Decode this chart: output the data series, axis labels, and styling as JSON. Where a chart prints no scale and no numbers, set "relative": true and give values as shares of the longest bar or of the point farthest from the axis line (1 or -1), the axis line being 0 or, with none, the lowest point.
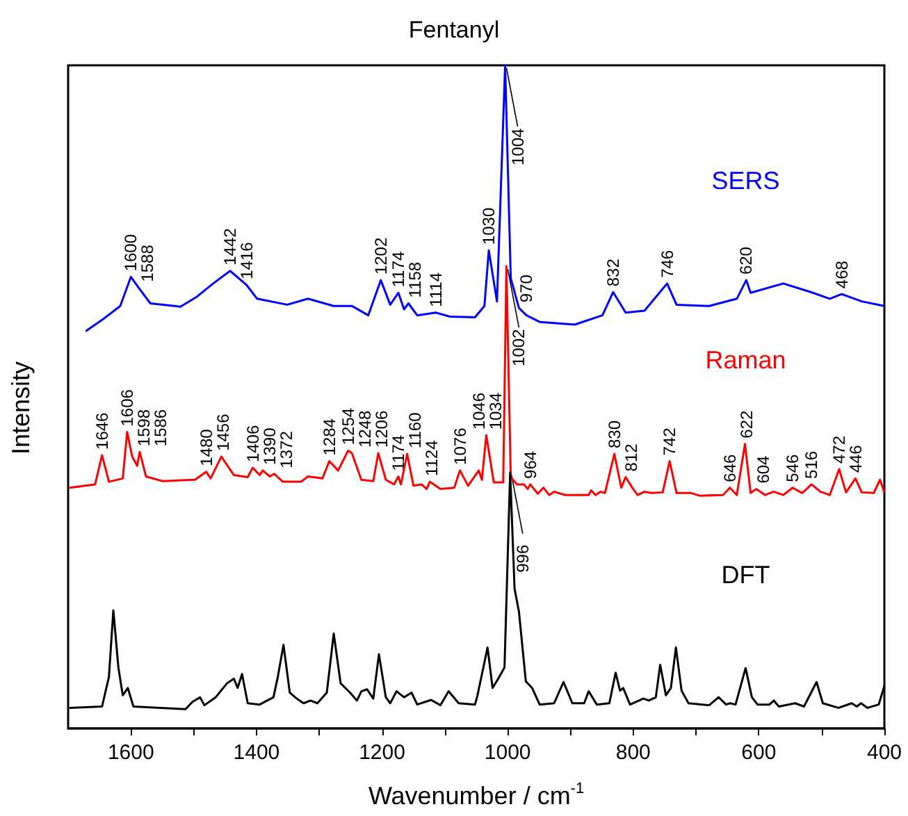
{
  "chart_data": {
    "type": "line",
    "title": "Fentanyl",
    "xlabel": "Wavenumber / cm$^{-1}$",
    "ylabel": "Intensity",
    "relative": true,
    "marker": "none",
    "xlim": [
      1700,
      400
    ],
    "xticks": [
      1600,
      {
        "value": 1500,
        "label": null
      },
      1400,
      {
        "value": 1300,
        "label": null
      },
      1200,
      {
        "value": 1100,
        "label": null
      },
      1000,
      {
        "value": 900,
        "label": null
      },
      800,
      {
        "value": 700,
        "label": null
      },
      600,
      {
        "value": 500,
        "label": null
      },
      400
    ],
    "series": [
      {
        "name": "SERS",
        "color": "#0000ff",
        "x": [
          1672,
          1646,
          1617,
          1600,
          1588,
          1569,
          1521,
          1495,
          1469,
          1442,
          1416,
          1399,
          1351,
          1318,
          1277,
          1248,
          1222,
          1202,
          1187,
          1174,
          1165,
          1158,
          1144,
          1114,
          1092,
          1052,
          1037,
          1030,
          1017,
          1004,
          995,
          982,
          970,
          949,
          893,
          849,
          832,
          812,
          782,
          746,
          731,
          679,
          635,
          620,
          613,
          561,
          517,
          487,
          468,
          436,
          400
        ],
        "values": [
          0.599,
          0.616,
          0.637,
          0.681,
          0.665,
          0.641,
          0.636,
          0.651,
          0.671,
          0.69,
          0.669,
          0.648,
          0.639,
          0.648,
          0.637,
          0.637,
          0.623,
          0.676,
          0.639,
          0.657,
          0.632,
          0.641,
          0.623,
          0.627,
          0.621,
          0.62,
          0.637,
          0.721,
          0.644,
          1,
          0.679,
          0.634,
          0.623,
          0.613,
          0.609,
          0.623,
          0.658,
          0.627,
          0.63,
          0.671,
          0.639,
          0.637,
          0.648,
          0.676,
          0.657,
          0.671,
          0.658,
          0.648,
          0.655,
          0.644,
          0.637
        ]
      },
      {
        "name": "Raman",
        "color": "#ff0000",
        "x": [
          1698,
          1657,
          1646,
          1635,
          1613,
          1606,
          1598,
          1590,
          1586,
          1576,
          1550,
          1498,
          1480,
          1473,
          1456,
          1436,
          1414,
          1406,
          1395,
          1390,
          1379,
          1372,
          1358,
          1329,
          1318,
          1295,
          1284,
          1270,
          1254,
          1248,
          1233,
          1214,
          1206,
          1194,
          1181,
          1174,
          1170,
          1160,
          1150,
          1137,
          1129,
          1124,
          1107,
          1085,
          1076,
          1063,
          1046,
          1041,
          1034,
          1022,
          1007,
          1002,
          995,
          985,
          974,
          968,
          964,
          952,
          943,
          934,
          926,
          908,
          871,
          867,
          860,
          852,
          845,
          830,
          819,
          812,
          800,
          793,
          782,
          771,
          753,
          742,
          731,
          708,
          694,
          657,
          646,
          635,
          622,
          613,
          604,
          590,
          576,
          561,
          546,
          531,
          516,
          502,
          487,
          472,
          461,
          446,
          436,
          417,
          407,
          400
        ],
        "values": [
          0.363,
          0.368,
          0.412,
          0.372,
          0.377,
          0.447,
          0.41,
          0.396,
          0.417,
          0.38,
          0.373,
          0.375,
          0.387,
          0.377,
          0.41,
          0.382,
          0.379,
          0.393,
          0.382,
          0.389,
          0.38,
          0.384,
          0.372,
          0.372,
          0.38,
          0.377,
          0.403,
          0.389,
          0.419,
          0.415,
          0.375,
          0.373,
          0.415,
          0.375,
          0.368,
          0.38,
          0.368,
          0.414,
          0.366,
          0.368,
          0.361,
          0.372,
          0.361,
          0.363,
          0.389,
          0.366,
          0.389,
          0.375,
          0.442,
          0.371,
          0.371,
          0.697,
          0.379,
          0.368,
          0.368,
          0.361,
          0.368,
          0.354,
          0.363,
          0.352,
          0.357,
          0.352,
          0.352,
          0.359,
          0.352,
          0.357,
          0.355,
          0.414,
          0.363,
          0.379,
          0.361,
          0.352,
          0.357,
          0.355,
          0.356,
          0.403,
          0.355,
          0.355,
          0.351,
          0.352,
          0.363,
          0.352,
          0.429,
          0.355,
          0.361,
          0.352,
          0.357,
          0.352,
          0.363,
          0.355,
          0.368,
          0.357,
          0.352,
          0.391,
          0.356,
          0.377,
          0.356,
          0.355,
          0.375,
          0.356
        ]
      },
      {
        "name": "DFT",
        "color": "#000000",
        "x": [
          1698,
          1646,
          1635,
          1628,
          1620,
          1613,
          1605,
          1596,
          1513,
          1502,
          1490,
          1483,
          1465,
          1447,
          1436,
          1430,
          1423,
          1414,
          1395,
          1373,
          1366,
          1357,
          1347,
          1336,
          1325,
          1314,
          1303,
          1288,
          1277,
          1266,
          1251,
          1240,
          1233,
          1224,
          1214,
          1205,
          1194,
          1187,
          1177,
          1165,
          1153,
          1144,
          1122,
          1107,
          1094,
          1078,
          1052,
          1048,
          1032,
          1024,
          1015,
          1005,
          996,
          989,
          982,
          971,
          961,
          949,
          926,
          911,
          897,
          878,
          871,
          858,
          838,
          828,
          821,
          816,
          805,
          784,
          775,
          764,
          757,
          748,
          740,
          732,
          723,
          712,
          679,
          664,
          652,
          646,
          637,
          621,
          611,
          602,
          583,
          576,
          568,
          542,
          528,
          508,
          498,
          473,
          452,
          444,
          437,
          427,
          409,
          400
        ],
        "values": [
          0.031,
          0.033,
          0.078,
          0.178,
          0.092,
          0.05,
          0.061,
          0.033,
          0.029,
          0.04,
          0.047,
          0.035,
          0.047,
          0.068,
          0.075,
          0.061,
          0.082,
          0.038,
          0.036,
          0.047,
          0.078,
          0.126,
          0.054,
          0.045,
          0.038,
          0.042,
          0.038,
          0.054,
          0.143,
          0.068,
          0.054,
          0.042,
          0.056,
          0.059,
          0.045,
          0.112,
          0.047,
          0.038,
          0.056,
          0.047,
          0.054,
          0.036,
          0.043,
          0.035,
          0.056,
          0.038,
          0.036,
          0.05,
          0.122,
          0.061,
          0.075,
          0.092,
          0.386,
          0.211,
          0.176,
          0.071,
          0.061,
          0.036,
          0.038,
          0.07,
          0.038,
          0.038,
          0.056,
          0.036,
          0.038,
          0.084,
          0.057,
          0.061,
          0.036,
          0.045,
          0.042,
          0.047,
          0.096,
          0.05,
          0.061,
          0.122,
          0.057,
          0.038,
          0.035,
          0.047,
          0.036,
          0.038,
          0.036,
          0.091,
          0.047,
          0.036,
          0.036,
          0.042,
          0.033,
          0.038,
          0.033,
          0.07,
          0.038,
          0.031,
          0.038,
          0.033,
          0.038,
          0.031,
          0.036,
          0.064
        ]
      }
    ],
    "annotations": [
      {
        "text": "1600",
        "x": 1600,
        "y": 0.681
      },
      {
        "text": "1588",
        "x": 1588,
        "y": 0.665
      },
      {
        "text": "1442",
        "x": 1442,
        "y": 0.69
      },
      {
        "text": "1416",
        "x": 1416,
        "y": 0.669
      },
      {
        "text": "1202",
        "x": 1202,
        "y": 0.676
      },
      {
        "text": "1174",
        "x": 1174,
        "y": 0.657
      },
      {
        "text": "1158",
        "x": 1158,
        "y": 0.641
      },
      {
        "text": "1114",
        "x": 1114,
        "y": 0.627
      },
      {
        "text": "1030",
        "x": 1030,
        "y": 0.721
      },
      {
        "text": "1004",
        "x": 1004,
        "y": 1
      },
      {
        "text": "970",
        "x": 970,
        "y": 0.623
      },
      {
        "text": "832",
        "x": 832,
        "y": 0.658
      },
      {
        "text": "746",
        "x": 746,
        "y": 0.671
      },
      {
        "text": "620",
        "x": 620,
        "y": 0.676
      },
      {
        "text": "468",
        "x": 468,
        "y": 0.655
      },
      {
        "text": "1646",
        "x": 1646,
        "y": 0.412
      },
      {
        "text": "1606",
        "x": 1606,
        "y": 0.447
      },
      {
        "text": "1598",
        "x": 1598,
        "y": 0.41
      },
      {
        "text": "1586",
        "x": 1586,
        "y": 0.417
      },
      {
        "text": "1480",
        "x": 1480,
        "y": 0.387
      },
      {
        "text": "1456",
        "x": 1456,
        "y": 0.41
      },
      {
        "text": "1406",
        "x": 1406,
        "y": 0.393
      },
      {
        "text": "1390",
        "x": 1390,
        "y": 0.389
      },
      {
        "text": "1372",
        "x": 1372,
        "y": 0.384
      },
      {
        "text": "1284",
        "x": 1284,
        "y": 0.403
      },
      {
        "text": "1254",
        "x": 1254,
        "y": 0.419
      },
      {
        "text": "1248",
        "x": 1248,
        "y": 0.415
      },
      {
        "text": "1206",
        "x": 1206,
        "y": 0.415
      },
      {
        "text": "1174",
        "x": 1174,
        "y": 0.38
      },
      {
        "text": "1160",
        "x": 1160,
        "y": 0.414
      },
      {
        "text": "1124",
        "x": 1124,
        "y": 0.372
      },
      {
        "text": "1076",
        "x": 1076,
        "y": 0.389
      },
      {
        "text": "1046",
        "x": 1046,
        "y": 0.389
      },
      {
        "text": "1034",
        "x": 1034,
        "y": 0.442
      },
      {
        "text": "1002",
        "x": 1002,
        "y": 0.697
      },
      {
        "text": "964",
        "x": 964,
        "y": 0.368
      },
      {
        "text": "830",
        "x": 830,
        "y": 0.414
      },
      {
        "text": "812",
        "x": 812,
        "y": 0.379
      },
      {
        "text": "742",
        "x": 742,
        "y": 0.403
      },
      {
        "text": "646",
        "x": 646,
        "y": 0.363
      },
      {
        "text": "622",
        "x": 622,
        "y": 0.429
      },
      {
        "text": "604",
        "x": 604,
        "y": 0.361
      },
      {
        "text": "546",
        "x": 546,
        "y": 0.363
      },
      {
        "text": "516",
        "x": 516,
        "y": 0.368
      },
      {
        "text": "472",
        "x": 472,
        "y": 0.391
      },
      {
        "text": "446",
        "x": 446,
        "y": 0.377
      },
      {
        "text": "996",
        "x": 996,
        "y": 0.386
      }
    ]
  }
}
